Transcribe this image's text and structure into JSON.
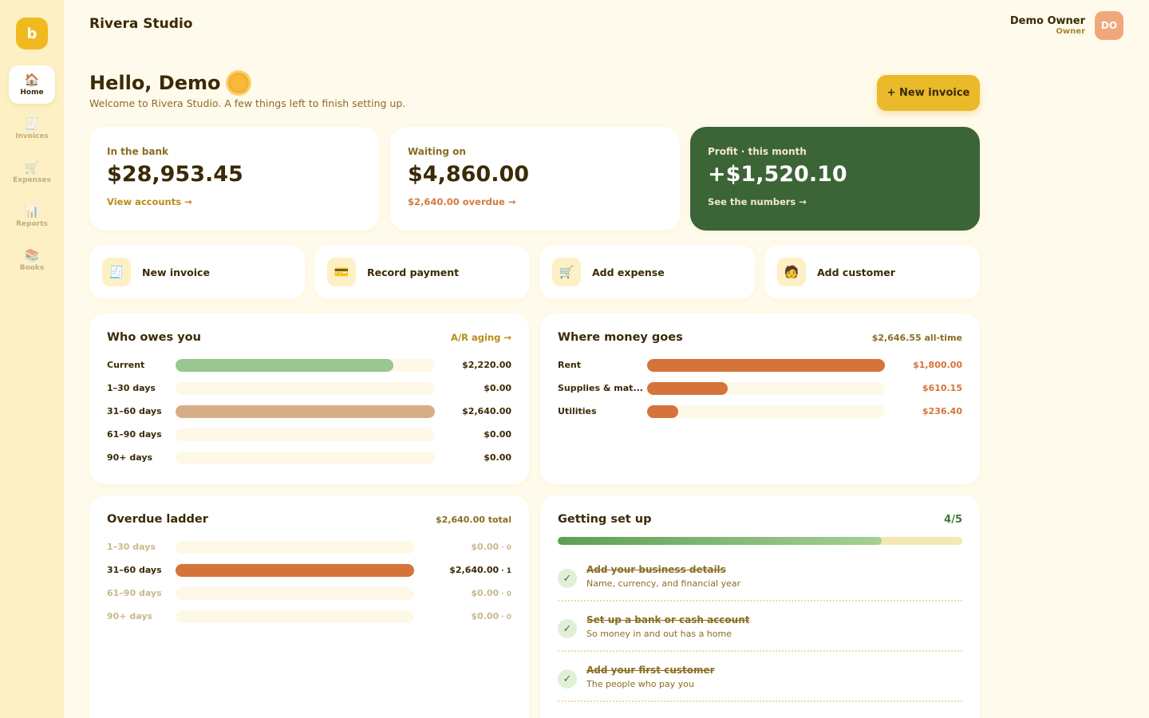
{
  "app": {
    "logo_letter": "b",
    "brand": "Rivera Studio"
  },
  "user": {
    "name": "Demo Owner",
    "role": "Owner",
    "initials": "DO"
  },
  "sidebar": {
    "items": [
      {
        "label": "Home",
        "icon": "home-icon",
        "glyph": "🏠",
        "active": true
      },
      {
        "label": "Invoices",
        "icon": "invoice-icon",
        "glyph": "🧾",
        "active": false
      },
      {
        "label": "Expenses",
        "icon": "cart-icon",
        "glyph": "🛒",
        "active": false
      },
      {
        "label": "Reports",
        "icon": "chart-icon",
        "glyph": "📊",
        "active": false
      },
      {
        "label": "Books",
        "icon": "books-icon",
        "glyph": "📚",
        "active": false
      }
    ]
  },
  "greeting": {
    "title": "Hello, Demo",
    "subtitle": "Welcome to Rivera Studio. A few things left to finish setting up."
  },
  "header": {
    "new_invoice_label": "+ New invoice"
  },
  "stats": [
    {
      "label": "In the bank",
      "value": "$28,953.45",
      "link": "View accounts →"
    },
    {
      "label": "Waiting on",
      "value": "$4,860.00",
      "link": "$2,640.00 overdue →"
    },
    {
      "label": "Profit · this month",
      "value": "+$1,520.10",
      "link": "See the numbers →"
    }
  ],
  "actions": [
    {
      "label": "New invoice",
      "glyph": "🧾",
      "icon": "invoice-icon"
    },
    {
      "label": "Record payment",
      "glyph": "💳",
      "icon": "credit-card-icon"
    },
    {
      "label": "Add expense",
      "glyph": "🛒",
      "icon": "cart-icon"
    },
    {
      "label": "Add customer",
      "glyph": "🧑",
      "icon": "person-icon"
    }
  ],
  "owes": {
    "title": "Who owes you",
    "link": "A/R aging →",
    "rows": [
      {
        "label": "Current",
        "amount": "$2,220.00",
        "value": 2220,
        "color": "#99c78f"
      },
      {
        "label": "1–30 days",
        "amount": "$0.00",
        "value": 0,
        "color": "#99c78f"
      },
      {
        "label": "31–60 days",
        "amount": "$2,640.00",
        "value": 2640,
        "color": "#d7ad88"
      },
      {
        "label": "61–90 days",
        "amount": "$0.00",
        "value": 0,
        "color": "#d7ad88"
      },
      {
        "label": "90+ days",
        "amount": "$0.00",
        "value": 0,
        "color": "#d7ad88"
      }
    ]
  },
  "money": {
    "title": "Where money goes",
    "meta": "$2,646.55 all-time",
    "rows": [
      {
        "label": "Rent",
        "amount": "$1,800.00",
        "value": 1800
      },
      {
        "label": "Supplies & mat...",
        "amount": "$610.15",
        "value": 610.15
      },
      {
        "label": "Utilities",
        "amount": "$236.40",
        "value": 236.4
      }
    ],
    "color": "#d5733a"
  },
  "ladder": {
    "title": "Overdue ladder",
    "meta": "$2,640.00 total",
    "rows": [
      {
        "label": "1–30 days",
        "amount": "$0.00",
        "count": "· 0",
        "value": 0
      },
      {
        "label": "31–60 days",
        "amount": "$2,640.00",
        "count": "· 1",
        "value": 2640
      },
      {
        "label": "61–90 days",
        "amount": "$0.00",
        "count": "· 0",
        "value": 0
      },
      {
        "label": "90+ days",
        "amount": "$0.00",
        "count": "· 0",
        "value": 0
      }
    ],
    "color": "#d5733a"
  },
  "setup": {
    "title": "Getting set up",
    "progress_text": "4/5",
    "progress": 0.8,
    "steps": [
      {
        "title": "Add your business details",
        "sub": "Name, currency, and financial year"
      },
      {
        "title": "Set up a bank or cash account",
        "sub": "So money in and out has a home"
      },
      {
        "title": "Add your first customer",
        "sub": "The people who pay you"
      }
    ]
  }
}
